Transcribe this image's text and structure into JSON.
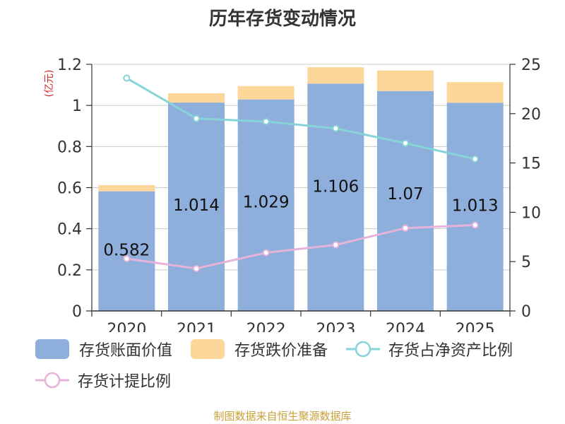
{
  "title": "历年存货变动情况",
  "source": "制图数据来自恒生聚源数据库",
  "colors": {
    "inventory_book": "#8eaedb",
    "impairment": "#fdd79a",
    "ratio_net_assets": "#86d4d8",
    "provision_ratio": "#e6b3da"
  },
  "chart_data": {
    "type": "bar",
    "stacked": true,
    "categories": [
      "2020",
      "2021",
      "2022",
      "2023",
      "2024",
      "2025"
    ],
    "left_axis": {
      "unit_label": "(亿元)",
      "ylim": [
        0,
        1.2
      ],
      "ticks": [
        "0",
        "0.2",
        "0.4",
        "0.6",
        "0.8",
        "1",
        "1.2"
      ]
    },
    "right_axis": {
      "ylim": [
        0,
        25
      ],
      "ticks": [
        "0",
        "5",
        "10",
        "15",
        "20",
        "25"
      ]
    },
    "series": [
      {
        "name": "存货账面价值",
        "kind": "bar",
        "axis": "left",
        "values": [
          0.582,
          1.014,
          1.029,
          1.106,
          1.07,
          1.013
        ],
        "labels": [
          "0.582",
          "1.014",
          "1.029",
          "1.106",
          "1.07",
          "1.013"
        ]
      },
      {
        "name": "存货跌价准备",
        "kind": "bar",
        "axis": "left",
        "values": [
          0.03,
          0.045,
          0.065,
          0.08,
          0.1,
          0.1
        ]
      },
      {
        "name": "存货占净资产比例",
        "kind": "line",
        "axis": "right",
        "values": [
          23.6,
          19.5,
          19.2,
          18.5,
          17.0,
          15.4
        ]
      },
      {
        "name": "存货计提比例",
        "kind": "line",
        "axis": "right",
        "values": [
          5.3,
          4.3,
          5.9,
          6.7,
          8.4,
          8.7
        ]
      }
    ]
  }
}
